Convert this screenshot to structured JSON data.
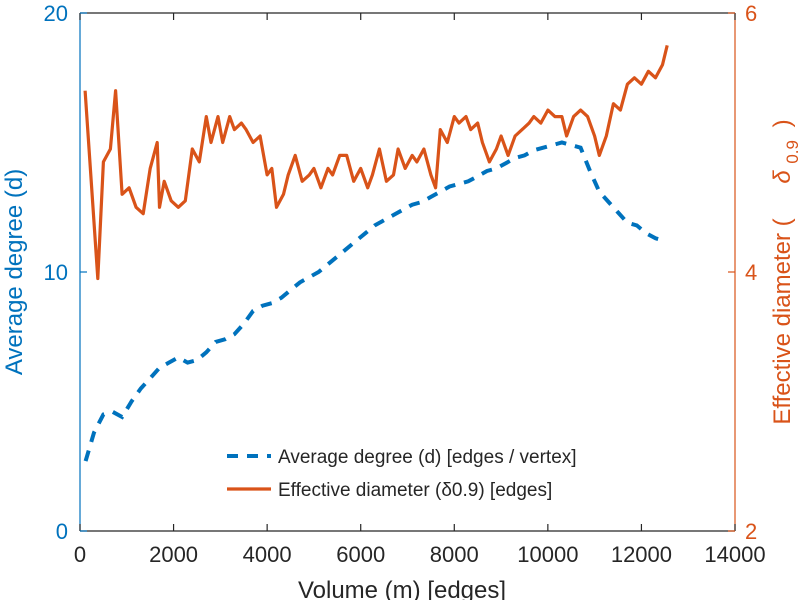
{
  "chart_data": {
    "type": "line",
    "title": "",
    "xlabel": "Volume (m) [edges]",
    "ylabel_left": "Average degree (d)",
    "ylabel_right_prefix": "Effective diameter (",
    "ylabel_right_symbol": "δ",
    "ylabel_right_sub": "0.9",
    "ylabel_right_suffix": ")",
    "xlim": [
      0,
      14000
    ],
    "ylim_left": [
      0,
      20
    ],
    "ylim_right": [
      2,
      6
    ],
    "x_ticks": [
      "0",
      "2000",
      "4000",
      "6000",
      "8000",
      "10000",
      "12000",
      "14000"
    ],
    "y_ticks_left": [
      "0",
      "10",
      "20"
    ],
    "y_ticks_right": [
      "2",
      "4",
      "6"
    ],
    "grid": false,
    "legend_position": "bottom-right",
    "colors": {
      "left": "#0072BD",
      "right": "#D95319",
      "axis": "#262626"
    },
    "series": [
      {
        "name": "Average degree (d) [edges / vertex]",
        "axis": "left",
        "style": "dashed",
        "x": [
          120,
          300,
          500,
          700,
          900,
          1100,
          1300,
          1500,
          1700,
          1900,
          2100,
          2300,
          2500,
          2700,
          2900,
          3100,
          3300,
          3500,
          3700,
          3900,
          4100,
          4300,
          4500,
          4700,
          4900,
          5100,
          5300,
          5500,
          5700,
          5900,
          6100,
          6300,
          6500,
          6700,
          6900,
          7100,
          7300,
          7500,
          7700,
          7900,
          8100,
          8300,
          8500,
          8700,
          8900,
          9100,
          9300,
          9500,
          9700,
          9900,
          10100,
          10300,
          10500,
          10700,
          10900,
          11100,
          11300,
          11500,
          11700,
          11900,
          12100,
          12300,
          12500
        ],
        "values": [
          2.7,
          3.8,
          4.5,
          4.6,
          4.4,
          5.0,
          5.5,
          5.9,
          6.3,
          6.5,
          6.7,
          6.5,
          6.6,
          6.9,
          7.3,
          7.4,
          7.6,
          8.0,
          8.5,
          8.7,
          8.8,
          9.0,
          9.3,
          9.6,
          9.8,
          10.0,
          10.3,
          10.6,
          10.9,
          11.2,
          11.5,
          11.8,
          12.0,
          12.2,
          12.4,
          12.6,
          12.7,
          12.9,
          13.1,
          13.3,
          13.4,
          13.5,
          13.7,
          13.9,
          14.0,
          14.2,
          14.4,
          14.5,
          14.7,
          14.8,
          14.9,
          15.0,
          14.9,
          14.8,
          13.9,
          13.1,
          12.7,
          12.3,
          11.9,
          11.8,
          11.5,
          11.3,
          11.2
        ]
      },
      {
        "name": "Effective diameter (δ0.9) [edges]",
        "axis": "right",
        "style": "solid",
        "x": [
          110,
          380,
          500,
          650,
          760,
          900,
          1050,
          1200,
          1350,
          1500,
          1650,
          1700,
          1800,
          1950,
          2100,
          2250,
          2400,
          2550,
          2700,
          2800,
          2950,
          3050,
          3200,
          3300,
          3450,
          3550,
          3700,
          3850,
          4000,
          4100,
          4200,
          4350,
          4450,
          4600,
          4750,
          4900,
          5000,
          5150,
          5300,
          5400,
          5550,
          5700,
          5850,
          6000,
          6150,
          6250,
          6400,
          6550,
          6700,
          6800,
          6950,
          7100,
          7200,
          7350,
          7500,
          7600,
          7700,
          7850,
          8000,
          8100,
          8250,
          8350,
          8500,
          8600,
          8750,
          8900,
          9000,
          9150,
          9300,
          9450,
          9600,
          9700,
          9850,
          10000,
          10150,
          10300,
          10400,
          10550,
          10700,
          10850,
          11000,
          11100,
          11250,
          11400,
          11550,
          11700,
          11850,
          12000,
          12150,
          12300,
          12450,
          12550
        ],
        "values": [
          5.4,
          3.95,
          4.85,
          4.95,
          5.4,
          4.6,
          4.65,
          4.5,
          4.45,
          4.8,
          5.0,
          4.5,
          4.7,
          4.55,
          4.5,
          4.55,
          4.95,
          4.85,
          5.2,
          5.0,
          5.2,
          5.0,
          5.2,
          5.1,
          5.15,
          5.1,
          5.0,
          5.05,
          4.75,
          4.8,
          4.5,
          4.6,
          4.75,
          4.9,
          4.7,
          4.75,
          4.8,
          4.65,
          4.8,
          4.75,
          4.9,
          4.9,
          4.7,
          4.8,
          4.65,
          4.75,
          4.95,
          4.7,
          4.75,
          4.95,
          4.8,
          4.9,
          4.85,
          4.95,
          4.75,
          4.65,
          5.1,
          5.0,
          5.2,
          5.15,
          5.2,
          5.1,
          5.15,
          5.0,
          4.85,
          4.95,
          5.05,
          4.9,
          5.05,
          5.1,
          5.15,
          5.2,
          5.15,
          5.25,
          5.2,
          5.2,
          5.05,
          5.2,
          5.25,
          5.2,
          5.05,
          4.9,
          5.05,
          5.3,
          5.25,
          5.45,
          5.5,
          5.45,
          5.55,
          5.5,
          5.6,
          5.75
        ]
      }
    ]
  }
}
